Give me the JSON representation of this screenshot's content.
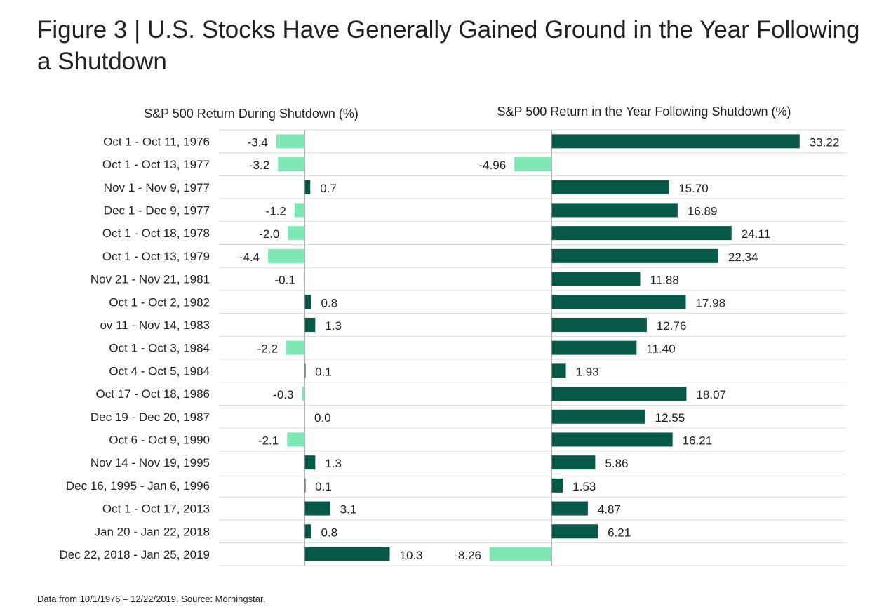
{
  "title": "Figure 3 | U.S. Stocks Have Generally Gained Ground in the Year Following a Shutdown",
  "source": "Data from 10/1/1976 – 12/22/2019. Source: Morningstar.",
  "colors": {
    "positive": "#075a47",
    "negative": "#7ee8b5",
    "grid": "#d9d9d9",
    "axis": "#999999"
  },
  "chart_data": {
    "type": "bar",
    "orientation": "horizontal",
    "categories": [
      "Oct 1 - Oct 11, 1976",
      "Oct 1 - Oct 13, 1977",
      "Nov 1 - Nov 9, 1977",
      "Dec 1 - Dec 9, 1977",
      "Oct 1 - Oct 18, 1978",
      "Oct 1 - Oct 13, 1979",
      "Nov 21 - Nov 21, 1981",
      "Oct 1 - Oct 2, 1982",
      "ov 11 - Nov 14, 1983",
      "Oct 1 - Oct 3, 1984",
      "Oct 4 - Oct 5, 1984",
      "Oct 17 - Oct 18, 1986",
      "Dec 19 - Dec 20, 1987",
      "Oct 6 - Oct 9, 1990",
      "Nov 14 - Nov 19, 1995",
      "Dec 16, 1995 - Jan 6, 1996",
      "Oct 1 - Oct 17, 2013",
      "Jan 20 - Jan 22, 2018",
      "Dec 22, 2018 - Jan 25, 2019"
    ],
    "series": [
      {
        "name": "S&P 500 Return During Shutdown (%)",
        "values": [
          -3.4,
          -3.2,
          0.7,
          -1.2,
          -2.0,
          -4.4,
          -0.1,
          0.8,
          1.3,
          -2.2,
          0.1,
          -0.3,
          0.0,
          -2.1,
          1.3,
          0.1,
          3.1,
          0.8,
          10.3
        ],
        "labels": [
          "-3.4",
          "-3.2",
          "0.7",
          "-1.2",
          "-2.0",
          "-4.4",
          "-0.1",
          "0.8",
          "1.3",
          "-2.2",
          "0.1",
          "-0.3",
          "0.0",
          "-2.1",
          "1.3",
          "0.1",
          "3.1",
          "0.8",
          "10.3"
        ],
        "xlim": [
          -5.5,
          10.3
        ]
      },
      {
        "name": "S&P 500 Return in the Year Following Shutdown (%)",
        "values": [
          33.22,
          -4.96,
          15.7,
          16.89,
          24.11,
          22.34,
          11.88,
          17.98,
          12.76,
          11.4,
          1.93,
          18.07,
          12.55,
          16.21,
          5.86,
          1.53,
          4.87,
          6.21,
          -8.26
        ],
        "labels": [
          "33.22",
          "-4.96",
          "15.70",
          "16.89",
          "24.11",
          "22.34",
          "11.88",
          "17.98",
          "12.76",
          "11.40",
          "1.93",
          "18.07",
          "12.55",
          "16.21",
          "5.86",
          "1.53",
          "4.87",
          "6.21",
          "-8.26"
        ],
        "xlim": [
          -8.26,
          33.22
        ]
      }
    ]
  }
}
